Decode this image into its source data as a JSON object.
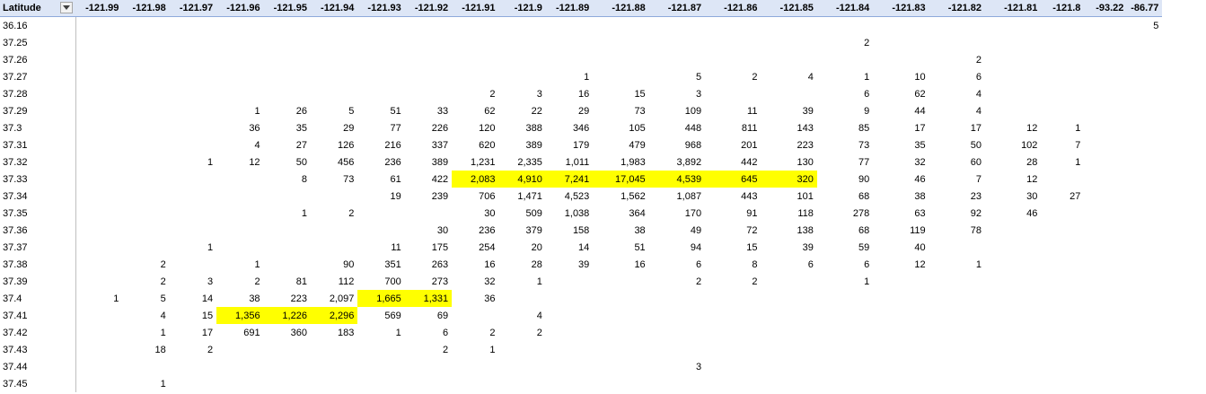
{
  "pivot": {
    "corner_label": "Latitude",
    "filter_icon": "dropdown-arrow-icon",
    "highlight_color": "#ffff00",
    "header_color": "#dde6f6",
    "columns": [
      "-121.99",
      "-121.98",
      "-121.97",
      "-121.96",
      "-121.95",
      "-121.94",
      "-121.93",
      "-121.92",
      "-121.91",
      "-121.9",
      "-121.89",
      "-121.88",
      "-121.87",
      "-121.86",
      "-121.85",
      "-121.84",
      "-121.83",
      "-121.82",
      "-121.81",
      "-121.8",
      "-93.22",
      "-86.77"
    ],
    "rows": [
      {
        "lat": "36.16",
        "cells": [
          "",
          "",
          "",
          "",
          "",
          "",
          "",
          "",
          "",
          "",
          "",
          "",
          "",
          "",
          "",
          "",
          "",
          "",
          "",
          "",
          "",
          "5"
        ],
        "hl": []
      },
      {
        "lat": "37.25",
        "cells": [
          "",
          "",
          "",
          "",
          "",
          "",
          "",
          "",
          "",
          "",
          "",
          "",
          "",
          "",
          "",
          "2",
          "",
          "",
          "",
          "",
          "",
          ""
        ],
        "hl": []
      },
      {
        "lat": "37.26",
        "cells": [
          "",
          "",
          "",
          "",
          "",
          "",
          "",
          "",
          "",
          "",
          "",
          "",
          "",
          "",
          "",
          "",
          "",
          "2",
          "",
          "",
          "",
          ""
        ],
        "hl": []
      },
      {
        "lat": "37.27",
        "cells": [
          "",
          "",
          "",
          "",
          "",
          "",
          "",
          "",
          "",
          "",
          "1",
          "",
          "5",
          "2",
          "4",
          "1",
          "10",
          "6",
          "",
          "",
          "",
          ""
        ],
        "hl": []
      },
      {
        "lat": "37.28",
        "cells": [
          "",
          "",
          "",
          "",
          "",
          "",
          "",
          "",
          "2",
          "3",
          "16",
          "15",
          "3",
          "",
          "",
          "6",
          "62",
          "4",
          "",
          "",
          "",
          ""
        ],
        "hl": []
      },
      {
        "lat": "37.29",
        "cells": [
          "",
          "",
          "",
          "1",
          "26",
          "5",
          "51",
          "33",
          "62",
          "22",
          "29",
          "73",
          "109",
          "11",
          "39",
          "9",
          "44",
          "4",
          "",
          "",
          "",
          ""
        ],
        "hl": []
      },
      {
        "lat": "37.3",
        "cells": [
          "",
          "",
          "",
          "36",
          "35",
          "29",
          "77",
          "226",
          "120",
          "388",
          "346",
          "105",
          "448",
          "811",
          "143",
          "85",
          "17",
          "17",
          "12",
          "1",
          "",
          ""
        ],
        "hl": []
      },
      {
        "lat": "37.31",
        "cells": [
          "",
          "",
          "",
          "4",
          "27",
          "126",
          "216",
          "337",
          "620",
          "389",
          "179",
          "479",
          "968",
          "201",
          "223",
          "73",
          "35",
          "50",
          "102",
          "7",
          "",
          ""
        ],
        "hl": []
      },
      {
        "lat": "37.32",
        "cells": [
          "",
          "",
          "1",
          "12",
          "50",
          "456",
          "236",
          "389",
          "1,231",
          "2,335",
          "1,011",
          "1,983",
          "3,892",
          "442",
          "130",
          "77",
          "32",
          "60",
          "28",
          "1",
          "",
          ""
        ],
        "hl": []
      },
      {
        "lat": "37.33",
        "cells": [
          "",
          "",
          "",
          "",
          "8",
          "73",
          "61",
          "422",
          "2,083",
          "4,910",
          "7,241",
          "17,045",
          "4,539",
          "645",
          "320",
          "90",
          "46",
          "7",
          "12",
          "",
          "",
          ""
        ],
        "hl": [
          8,
          9,
          10,
          11,
          12,
          13,
          14
        ]
      },
      {
        "lat": "37.34",
        "cells": [
          "",
          "",
          "",
          "",
          "",
          "",
          "19",
          "239",
          "706",
          "1,471",
          "4,523",
          "1,562",
          "1,087",
          "443",
          "101",
          "68",
          "38",
          "23",
          "30",
          "27",
          "",
          ""
        ],
        "hl": []
      },
      {
        "lat": "37.35",
        "cells": [
          "",
          "",
          "",
          "",
          "1",
          "2",
          "",
          "",
          "30",
          "509",
          "1,038",
          "364",
          "170",
          "91",
          "118",
          "278",
          "63",
          "92",
          "46",
          "",
          "",
          ""
        ],
        "hl": []
      },
      {
        "lat": "37.36",
        "cells": [
          "",
          "",
          "",
          "",
          "",
          "",
          "",
          "30",
          "236",
          "379",
          "158",
          "38",
          "49",
          "72",
          "138",
          "68",
          "119",
          "78",
          "",
          "",
          "",
          ""
        ],
        "hl": []
      },
      {
        "lat": "37.37",
        "cells": [
          "",
          "",
          "1",
          "",
          "",
          "",
          "11",
          "175",
          "254",
          "20",
          "14",
          "51",
          "94",
          "15",
          "39",
          "59",
          "40",
          "",
          "",
          "",
          "",
          ""
        ],
        "hl": []
      },
      {
        "lat": "37.38",
        "cells": [
          "",
          "2",
          "",
          "1",
          "",
          "90",
          "351",
          "263",
          "16",
          "28",
          "39",
          "16",
          "6",
          "8",
          "6",
          "6",
          "12",
          "1",
          "",
          "",
          "",
          ""
        ],
        "hl": []
      },
      {
        "lat": "37.39",
        "cells": [
          "",
          "2",
          "3",
          "2",
          "81",
          "112",
          "700",
          "273",
          "32",
          "1",
          "",
          "",
          "2",
          "2",
          "",
          "1",
          "",
          "",
          "",
          "",
          "",
          ""
        ],
        "hl": []
      },
      {
        "lat": "37.4",
        "cells": [
          "1",
          "5",
          "14",
          "38",
          "223",
          "2,097",
          "1,665",
          "1,331",
          "36",
          "",
          "",
          "",
          "",
          "",
          "",
          "",
          "",
          "",
          "",
          "",
          "",
          ""
        ],
        "hl": [
          6,
          7
        ]
      },
      {
        "lat": "37.41",
        "cells": [
          "",
          "4",
          "15",
          "1,356",
          "1,226",
          "2,296",
          "569",
          "69",
          "",
          "4",
          "",
          "",
          "",
          "",
          "",
          "",
          "",
          "",
          "",
          "",
          "",
          ""
        ],
        "hl": [
          3,
          4,
          5
        ]
      },
      {
        "lat": "37.42",
        "cells": [
          "",
          "1",
          "17",
          "691",
          "360",
          "183",
          "1",
          "6",
          "2",
          "2",
          "",
          "",
          "",
          "",
          "",
          "",
          "",
          "",
          "",
          "",
          "",
          ""
        ],
        "hl": []
      },
      {
        "lat": "37.43",
        "cells": [
          "",
          "18",
          "2",
          "",
          "",
          "",
          "",
          "2",
          "1",
          "",
          "",
          "",
          "",
          "",
          "",
          "",
          "",
          "",
          "",
          "",
          "",
          ""
        ],
        "hl": []
      },
      {
        "lat": "37.44",
        "cells": [
          "",
          "",
          "",
          "",
          "",
          "",
          "",
          "",
          "",
          "",
          "",
          "",
          "3",
          "",
          "",
          "",
          "",
          "",
          "",
          "",
          "",
          ""
        ],
        "hl": []
      },
      {
        "lat": "37.45",
        "cells": [
          "",
          "1",
          "",
          "",
          "",
          "",
          "",
          "",
          "",
          "",
          "",
          "",
          "",
          "",
          "",
          "",
          "",
          "",
          "",
          "",
          "",
          ""
        ],
        "hl": []
      }
    ]
  }
}
